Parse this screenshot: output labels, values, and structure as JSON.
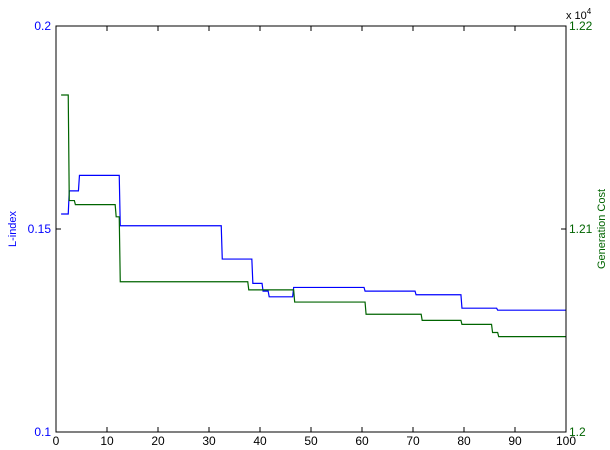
{
  "chart_data": {
    "type": "line",
    "title": "",
    "xlabel": "",
    "xlim": [
      0,
      100
    ],
    "xticks": [
      "0",
      "10",
      "20",
      "30",
      "40",
      "50",
      "60",
      "70",
      "80",
      "90",
      "100"
    ],
    "y_left": {
      "label": "L-index",
      "lim": [
        0.1,
        0.2
      ],
      "ticks": [
        "0.1",
        "0.15",
        "0.2"
      ],
      "color": "#0000ff"
    },
    "y_right": {
      "label": "Generation Cost",
      "lim": [
        1.2,
        1.22
      ],
      "ticks": [
        "1.2",
        "1.21",
        "1.22"
      ],
      "multiplier_base": "x 10",
      "multiplier_exp": "4",
      "color": "#006400"
    },
    "grid": false,
    "legend": "none",
    "series": [
      {
        "axis": "left",
        "color": "#0000ff",
        "points": [
          [
            1,
            0.1537
          ],
          [
            2.4,
            0.1537
          ],
          [
            2.6,
            0.1594
          ],
          [
            4.4,
            0.1594
          ],
          [
            4.6,
            0.1632
          ],
          [
            12.4,
            0.1632
          ],
          [
            12.6,
            0.1508
          ],
          [
            32.4,
            0.1508
          ],
          [
            32.6,
            0.1426
          ],
          [
            38.4,
            0.1426
          ],
          [
            38.6,
            0.1366
          ],
          [
            40.4,
            0.1366
          ],
          [
            40.6,
            0.1347
          ],
          [
            41.6,
            0.1347
          ],
          [
            41.8,
            0.1333
          ],
          [
            46.4,
            0.1333
          ],
          [
            46.6,
            0.1356
          ],
          [
            60.4,
            0.1356
          ],
          [
            60.6,
            0.1347
          ],
          [
            70.4,
            0.1347
          ],
          [
            70.6,
            0.1338
          ],
          [
            79.4,
            0.1338
          ],
          [
            79.6,
            0.1305
          ],
          [
            86.4,
            0.1305
          ],
          [
            86.6,
            0.13
          ],
          [
            100,
            0.13
          ]
        ]
      },
      {
        "axis": "right",
        "color": "#006400",
        "points": [
          [
            1,
            1.2166
          ],
          [
            2.4,
            1.2166
          ],
          [
            2.6,
            1.2114
          ],
          [
            3.6,
            1.2114
          ],
          [
            3.8,
            1.2112
          ],
          [
            11.6,
            1.2112
          ],
          [
            11.8,
            1.2106
          ],
          [
            12.4,
            1.2106
          ],
          [
            12.6,
            1.2074
          ],
          [
            37.6,
            1.2074
          ],
          [
            37.8,
            1.207
          ],
          [
            46.6,
            1.207
          ],
          [
            46.8,
            1.2064
          ],
          [
            60.6,
            1.2064
          ],
          [
            60.8,
            1.2058
          ],
          [
            71.6,
            1.2058
          ],
          [
            71.8,
            1.2055
          ],
          [
            79.4,
            1.2055
          ],
          [
            79.6,
            1.2053
          ],
          [
            85.4,
            1.2053
          ],
          [
            85.6,
            1.2049
          ],
          [
            86.6,
            1.2049
          ],
          [
            86.8,
            1.2047
          ],
          [
            87.6,
            1.2047
          ],
          [
            87.8,
            1.2047
          ],
          [
            100,
            1.2047
          ]
        ]
      }
    ]
  }
}
